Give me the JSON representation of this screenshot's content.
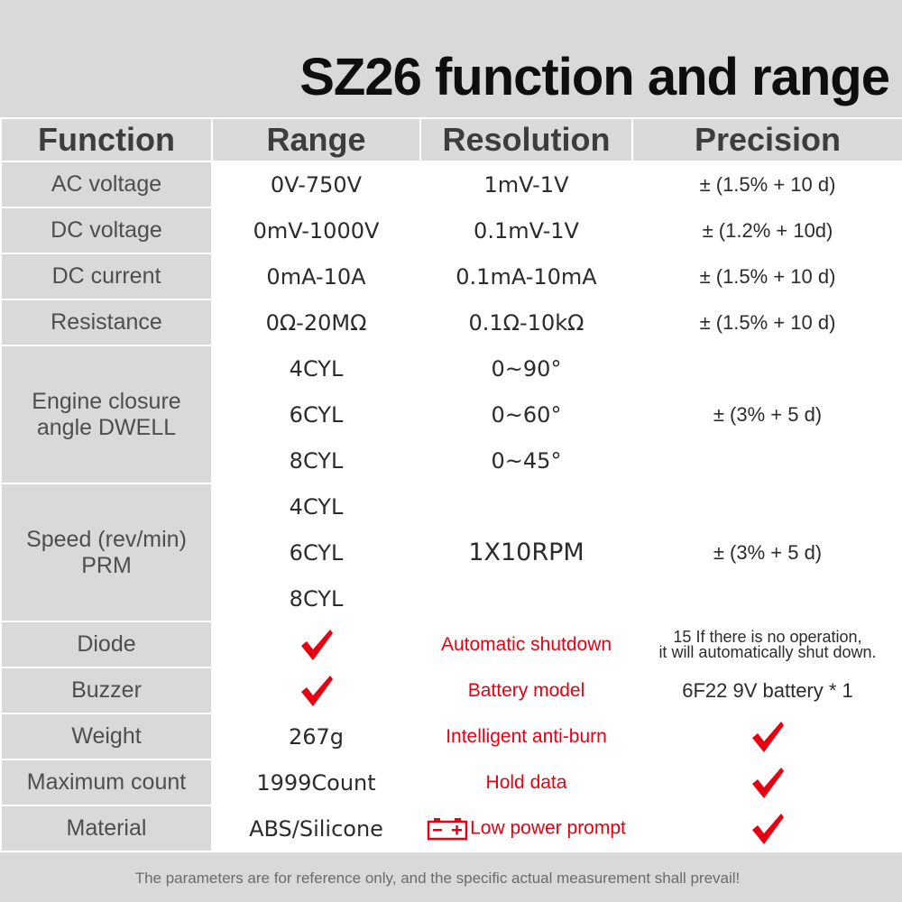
{
  "title": "SZ26 function and range",
  "headers": {
    "function": "Function",
    "range": "Range",
    "resolution": "Resolution",
    "precision": "Precision"
  },
  "rows": {
    "ac_voltage": {
      "function": "AC voltage",
      "range": "0V-750V",
      "resolution": "1mV-1V",
      "precision": "± (1.5%  + 10 d)"
    },
    "dc_voltage": {
      "function": "DC voltage",
      "range": "0mV-1000V",
      "resolution": "0.1mV-1V",
      "precision": "± (1.2% + 10d)"
    },
    "dc_current": {
      "function": "DC current",
      "range": "0mA-10A",
      "resolution": "0.1mA-10mA",
      "precision": "± (1.5% + 10 d)"
    },
    "resistance": {
      "function": "Resistance",
      "range": "0Ω-20MΩ",
      "resolution": "0.1Ω-10kΩ",
      "precision": "± (1.5%  + 10 d)"
    }
  },
  "dwell": {
    "function_line1": "Engine closure",
    "function_line2": "angle DWELL",
    "ranges": [
      "4CYL",
      "6CYL",
      "8CYL"
    ],
    "resolutions": [
      "0~90°",
      "0~60°",
      "0~45°"
    ],
    "precision": "± (3%  + 5 d)"
  },
  "speed": {
    "function_line1": "Speed (rev/min)",
    "function_line2": "PRM",
    "ranges": [
      "4CYL",
      "6CYL",
      "8CYL"
    ],
    "resolution": "1X10RPM",
    "precision": "± (3% + 5 d)"
  },
  "features": {
    "diode": {
      "label": "Diode",
      "value_icon": "red-check-icon",
      "feature": "Automatic shutdown",
      "detail_line1": "15 If there is no operation,",
      "detail_line2": "it will automatically shut down."
    },
    "buzzer": {
      "label": "Buzzer",
      "value_icon": "red-check-icon",
      "feature": "Battery model",
      "detail": "6F22 9V battery * 1"
    },
    "weight": {
      "label": "Weight",
      "value": "267g",
      "feature": "Intelligent anti-burn",
      "detail_icon": "red-check-icon"
    },
    "max_count": {
      "label": "Maximum count",
      "value": "1999Count",
      "feature": "Hold data",
      "detail_icon": "red-check-icon"
    },
    "material": {
      "label": "Material",
      "value": "ABS/Silicone",
      "feature_icon": "battery-icon",
      "feature": "Low power prompt",
      "detail_icon": "red-check-icon"
    }
  },
  "footnote": "The parameters are for reference only, and the specific actual measurement shall prevail!",
  "colors": {
    "background": "#d9d9d9",
    "accent_red": "#e60012",
    "cell_white": "#ffffff",
    "title": "#0e0e0e"
  }
}
